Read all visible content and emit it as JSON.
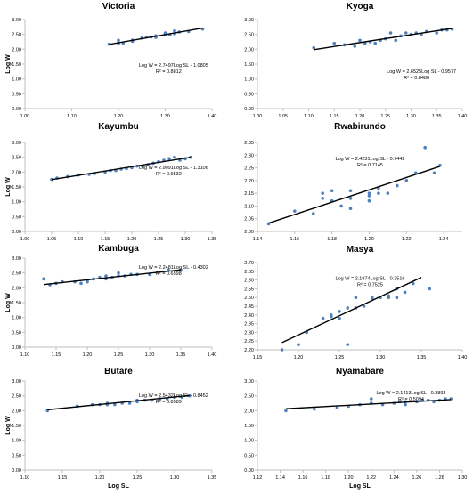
{
  "figure": {
    "y_axis_label": "Log W",
    "x_axis_label": "Log SL"
  },
  "colors": {
    "points": "#4f81bd",
    "trendline": "#000000",
    "axis": "#bfbfbf",
    "text": "#000000"
  },
  "chart_data": [
    {
      "type": "scatter",
      "title": "Victoria",
      "xlabel": "",
      "ylabel": "Log W",
      "xlim": [
        1.0,
        1.4
      ],
      "ylim": [
        0.0,
        3.0
      ],
      "xticks": [
        "1.00",
        "1.10",
        "1.20",
        "1.30",
        "1.40"
      ],
      "yticks": [
        "0.00",
        "0.50",
        "1.00",
        "1.50",
        "2.00",
        "2.50",
        "3.00"
      ],
      "equation": "Log W = 2.7497Log SL - 1.0805",
      "r2": "R² = 0.8812",
      "trend": {
        "slope": 2.7497,
        "intercept": -1.0805,
        "x_range": [
          1.18,
          1.38
        ]
      },
      "points": [
        [
          1.18,
          2.17
        ],
        [
          1.2,
          2.2
        ],
        [
          1.2,
          2.3
        ],
        [
          1.21,
          2.21
        ],
        [
          1.23,
          2.27
        ],
        [
          1.23,
          2.31
        ],
        [
          1.25,
          2.38
        ],
        [
          1.26,
          2.41
        ],
        [
          1.27,
          2.41
        ],
        [
          1.28,
          2.45
        ],
        [
          1.28,
          2.4
        ],
        [
          1.3,
          2.5
        ],
        [
          1.3,
          2.55
        ],
        [
          1.31,
          2.49
        ],
        [
          1.32,
          2.52
        ],
        [
          1.32,
          2.62
        ],
        [
          1.33,
          2.58
        ],
        [
          1.35,
          2.6
        ],
        [
          1.38,
          2.68
        ]
      ]
    },
    {
      "type": "scatter",
      "title": "Kyoga",
      "xlabel": "",
      "ylabel": "",
      "xlim": [
        1.0,
        1.4
      ],
      "ylim": [
        0.0,
        3.0
      ],
      "xticks": [
        "1.00",
        "1.05",
        "1.10",
        "1.15",
        "1.20",
        "1.25",
        "1.30",
        "1.35",
        "1.40"
      ],
      "yticks": [
        "0.00",
        "0.50",
        "1.00",
        "1.50",
        "2.00",
        "2.50",
        "3.00"
      ],
      "equation": "Log W = 2.6525Log SL - 0.9577",
      "r2": "R² = 0.8486",
      "trend": {
        "slope": 2.6525,
        "intercept": -0.9577,
        "x_range": [
          1.11,
          1.38
        ]
      },
      "points": [
        [
          1.11,
          2.05
        ],
        [
          1.15,
          2.2
        ],
        [
          1.17,
          2.15
        ],
        [
          1.19,
          2.1
        ],
        [
          1.2,
          2.3
        ],
        [
          1.21,
          2.2
        ],
        [
          1.22,
          2.25
        ],
        [
          1.23,
          2.2
        ],
        [
          1.24,
          2.3
        ],
        [
          1.25,
          2.35
        ],
        [
          1.26,
          2.55
        ],
        [
          1.27,
          2.3
        ],
        [
          1.28,
          2.45
        ],
        [
          1.29,
          2.55
        ],
        [
          1.3,
          2.5
        ],
        [
          1.31,
          2.55
        ],
        [
          1.32,
          2.5
        ],
        [
          1.33,
          2.6
        ],
        [
          1.35,
          2.55
        ],
        [
          1.36,
          2.65
        ],
        [
          1.37,
          2.65
        ],
        [
          1.38,
          2.68
        ]
      ]
    },
    {
      "type": "scatter",
      "title": "Kayumbu",
      "xlabel": "",
      "ylabel": "Log W",
      "xlim": [
        1.0,
        1.35
      ],
      "ylim": [
        0.0,
        3.0
      ],
      "xticks": [
        "1.00",
        "1.05",
        "1.10",
        "1.15",
        "1.20",
        "1.25",
        "1.30",
        "1.35"
      ],
      "yticks": [
        "0.00",
        "0.50",
        "1.00",
        "1.50",
        "2.00",
        "2.50",
        "3.00"
      ],
      "equation": "Log W = 2.9091Log SL - 1.3106",
      "r2": "R² = 0.9532",
      "trend": {
        "slope": 2.9091,
        "intercept": -1.3106,
        "x_range": [
          1.05,
          1.31
        ]
      },
      "points": [
        [
          1.05,
          1.75
        ],
        [
          1.06,
          1.8
        ],
        [
          1.08,
          1.85
        ],
        [
          1.1,
          1.9
        ],
        [
          1.12,
          1.92
        ],
        [
          1.13,
          1.95
        ],
        [
          1.15,
          2.0
        ],
        [
          1.16,
          2.05
        ],
        [
          1.17,
          2.05
        ],
        [
          1.18,
          2.1
        ],
        [
          1.19,
          2.12
        ],
        [
          1.2,
          2.15
        ],
        [
          1.21,
          2.2
        ],
        [
          1.22,
          2.2
        ],
        [
          1.23,
          2.25
        ],
        [
          1.24,
          2.3
        ],
        [
          1.25,
          2.35
        ],
        [
          1.26,
          2.4
        ],
        [
          1.27,
          2.45
        ],
        [
          1.28,
          2.5
        ],
        [
          1.29,
          2.4
        ],
        [
          1.3,
          2.45
        ],
        [
          1.31,
          2.5
        ]
      ]
    },
    {
      "type": "scatter",
      "title": "Rwabirundo",
      "xlabel": "",
      "ylabel": "",
      "xlim": [
        1.14,
        1.25
      ],
      "ylim": [
        2.0,
        2.35
      ],
      "xticks": [
        "1.14",
        "1.16",
        "1.18",
        "1.20",
        "1.22",
        "1.24"
      ],
      "yticks": [
        "2.00",
        "2.05",
        "2.10",
        "2.15",
        "2.20",
        "2.25",
        "2.30",
        "2.35"
      ],
      "equation": "Log W = 2.4231Log SL - 0.7442",
      "r2": "R² = 0.7145",
      "trend": {
        "slope": 2.4231,
        "intercept": -0.7442,
        "x_range": [
          1.146,
          1.238
        ]
      },
      "points": [
        [
          1.146,
          2.03
        ],
        [
          1.16,
          2.08
        ],
        [
          1.17,
          2.07
        ],
        [
          1.175,
          2.13
        ],
        [
          1.175,
          2.15
        ],
        [
          1.18,
          2.16
        ],
        [
          1.18,
          2.12
        ],
        [
          1.185,
          2.1
        ],
        [
          1.19,
          2.13
        ],
        [
          1.19,
          2.09
        ],
        [
          1.19,
          2.16
        ],
        [
          1.2,
          2.14
        ],
        [
          1.2,
          2.15
        ],
        [
          1.2,
          2.12
        ],
        [
          1.205,
          2.15
        ],
        [
          1.205,
          2.17
        ],
        [
          1.21,
          2.15
        ],
        [
          1.215,
          2.18
        ],
        [
          1.22,
          2.2
        ],
        [
          1.225,
          2.23
        ],
        [
          1.23,
          2.33
        ],
        [
          1.235,
          2.23
        ],
        [
          1.238,
          2.26
        ]
      ]
    },
    {
      "type": "scatter",
      "title": "Kambuga",
      "xlabel": "",
      "ylabel": "Log W",
      "xlim": [
        1.1,
        1.4
      ],
      "ylim": [
        0.0,
        3.0
      ],
      "xticks": [
        "1.10",
        "1.15",
        "1.20",
        "1.25",
        "1.30",
        "1.35",
        "1.40"
      ],
      "yticks": [
        "0.00",
        "0.50",
        "1.00",
        "1.50",
        "2.00",
        "2.50",
        "3.00"
      ],
      "equation": "Log W = 2.2481Log SL - 0.4302",
      "r2": "R² = 0.6598",
      "trend": {
        "slope": 2.2481,
        "intercept": -0.4302,
        "x_range": [
          1.13,
          1.35
        ]
      },
      "points": [
        [
          1.13,
          2.3
        ],
        [
          1.14,
          2.1
        ],
        [
          1.15,
          2.15
        ],
        [
          1.16,
          2.2
        ],
        [
          1.18,
          2.2
        ],
        [
          1.19,
          2.15
        ],
        [
          1.2,
          2.25
        ],
        [
          1.2,
          2.2
        ],
        [
          1.21,
          2.3
        ],
        [
          1.22,
          2.35
        ],
        [
          1.23,
          2.3
        ],
        [
          1.23,
          2.4
        ],
        [
          1.24,
          2.35
        ],
        [
          1.25,
          2.4
        ],
        [
          1.25,
          2.5
        ],
        [
          1.26,
          2.4
        ],
        [
          1.27,
          2.45
        ],
        [
          1.28,
          2.45
        ],
        [
          1.3,
          2.45
        ],
        [
          1.33,
          2.6
        ],
        [
          1.35,
          2.6
        ]
      ]
    },
    {
      "type": "scatter",
      "title": "Masya",
      "xlabel": "",
      "ylabel": "",
      "xlim": [
        1.15,
        1.4
      ],
      "ylim": [
        2.2,
        2.7
      ],
      "xticks": [
        "1.15",
        "1.20",
        "1.25",
        "1.30",
        "1.35",
        "1.40"
      ],
      "yticks": [
        "2.20",
        "2.25",
        "2.30",
        "2.35",
        "2.40",
        "2.45",
        "2.50",
        "2.55",
        "2.60",
        "2.65",
        "2.70"
      ],
      "equation": "Log W = 2.1974Log SL - 0.3516",
      "r2": "R² = 0.7525",
      "trend": {
        "slope": 2.1974,
        "intercept": -0.3516,
        "x_range": [
          1.18,
          1.35
        ]
      },
      "points": [
        [
          1.18,
          2.2
        ],
        [
          1.2,
          2.23
        ],
        [
          1.21,
          2.3
        ],
        [
          1.23,
          2.38
        ],
        [
          1.24,
          2.39
        ],
        [
          1.24,
          2.4
        ],
        [
          1.25,
          2.38
        ],
        [
          1.25,
          2.42
        ],
        [
          1.26,
          2.23
        ],
        [
          1.26,
          2.44
        ],
        [
          1.27,
          2.44
        ],
        [
          1.27,
          2.5
        ],
        [
          1.28,
          2.45
        ],
        [
          1.29,
          2.5
        ],
        [
          1.29,
          2.49
        ],
        [
          1.3,
          2.5
        ],
        [
          1.31,
          2.5
        ],
        [
          1.31,
          2.51
        ],
        [
          1.32,
          2.55
        ],
        [
          1.32,
          2.5
        ],
        [
          1.33,
          2.53
        ],
        [
          1.34,
          2.58
        ],
        [
          1.36,
          2.55
        ]
      ]
    },
    {
      "type": "scatter",
      "title": "Butare",
      "xlabel": "Log SL",
      "ylabel": "Log W",
      "xlim": [
        1.1,
        1.35
      ],
      "ylim": [
        0.0,
        3.0
      ],
      "xticks": [
        "1.10",
        "1.15",
        "1.20",
        "1.25",
        "1.30",
        "1.35"
      ],
      "yticks": [
        "0.00",
        "0.50",
        "1.00",
        "1.50",
        "2.00",
        "2.50",
        "3.00"
      ],
      "equation": "Log W = 2.5432Log SL - 0.8452",
      "r2": "R² = 0.8589",
      "trend": {
        "slope": 2.5432,
        "intercept": -0.8452,
        "x_range": [
          1.13,
          1.32
        ]
      },
      "points": [
        [
          1.13,
          2.0
        ],
        [
          1.17,
          2.15
        ],
        [
          1.19,
          2.2
        ],
        [
          1.2,
          2.2
        ],
        [
          1.21,
          2.25
        ],
        [
          1.21,
          2.2
        ],
        [
          1.22,
          2.2
        ],
        [
          1.23,
          2.25
        ],
        [
          1.24,
          2.25
        ],
        [
          1.25,
          2.3
        ],
        [
          1.25,
          2.35
        ],
        [
          1.26,
          2.35
        ],
        [
          1.27,
          2.35
        ],
        [
          1.28,
          2.4
        ],
        [
          1.28,
          2.4
        ],
        [
          1.29,
          2.4
        ],
        [
          1.3,
          2.45
        ],
        [
          1.31,
          2.45
        ],
        [
          1.32,
          2.5
        ]
      ]
    },
    {
      "type": "scatter",
      "title": "Nyamabare",
      "xlabel": "Log SL",
      "ylabel": "",
      "xlim": [
        1.12,
        1.3
      ],
      "ylim": [
        0.0,
        3.0
      ],
      "xticks": [
        "1.12",
        "1.14",
        "1.16",
        "1.18",
        "1.20",
        "1.22",
        "1.24",
        "1.26",
        "1.28",
        "1.30"
      ],
      "yticks": [
        "0.00",
        "0.50",
        "1.00",
        "1.50",
        "2.00",
        "2.50",
        "3.00"
      ],
      "equation": "Log W = 2.1413Log SL - 0.3893",
      "r2": "R² = 0.5094",
      "trend": {
        "slope": 2.1413,
        "intercept": -0.3893,
        "x_range": [
          1.145,
          1.29
        ]
      },
      "points": [
        [
          1.145,
          2.0
        ],
        [
          1.17,
          2.05
        ],
        [
          1.19,
          2.1
        ],
        [
          1.2,
          2.15
        ],
        [
          1.21,
          2.2
        ],
        [
          1.22,
          2.25
        ],
        [
          1.22,
          2.4
        ],
        [
          1.23,
          2.2
        ],
        [
          1.24,
          2.25
        ],
        [
          1.245,
          2.3
        ],
        [
          1.25,
          2.3
        ],
        [
          1.25,
          2.2
        ],
        [
          1.26,
          2.3
        ],
        [
          1.265,
          2.35
        ],
        [
          1.27,
          2.35
        ],
        [
          1.275,
          2.3
        ],
        [
          1.28,
          2.35
        ],
        [
          1.285,
          2.4
        ],
        [
          1.29,
          2.4
        ]
      ]
    }
  ]
}
